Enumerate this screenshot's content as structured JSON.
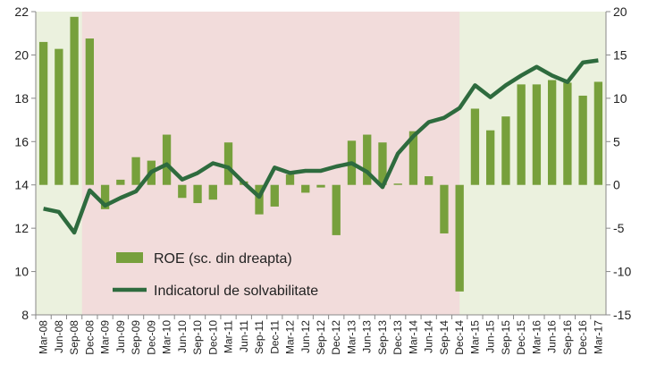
{
  "chart_data": {
    "type": "bar_line",
    "categories": [
      "Mar-08",
      "Jun-08",
      "Sep-08",
      "Dec-08",
      "Mar-09",
      "Jun-09",
      "Sep-09",
      "Dec-09",
      "Mar-10",
      "Jun-10",
      "Sep-10",
      "Dec-10",
      "Mar-11",
      "Jun-11",
      "Sep-11",
      "Dec-11",
      "Mar-12",
      "Jun-12",
      "Sep-12",
      "Dec-12",
      "Mar-13",
      "Jun-13",
      "Sep-13",
      "Dec-13",
      "Mar-14",
      "Jun-14",
      "Sep-14",
      "Dec-14",
      "Mar-15",
      "Jun-15",
      "Sep-15",
      "Dec-15",
      "Mar-16",
      "Jun-16",
      "Sep-16",
      "Dec-16",
      "Mar-17"
    ],
    "series": [
      {
        "name": "ROE (sc. din dreapta)",
        "type": "bar",
        "axis": "y2",
        "color": "#77a03c",
        "values": [
          16.5,
          15.7,
          19.4,
          16.9,
          -2.8,
          0.6,
          3.2,
          2.8,
          5.8,
          -1.5,
          -2.1,
          -1.7,
          4.9,
          0.4,
          -3.4,
          -2.5,
          1.2,
          -0.9,
          -0.3,
          -5.8,
          5.1,
          5.8,
          4.9,
          0.15,
          6.2,
          1.0,
          -5.6,
          -12.3,
          8.8,
          6.3,
          7.9,
          11.6,
          11.6,
          12.1,
          11.8,
          10.3,
          11.9
        ]
      },
      {
        "name": "Indicatorul de solvabilitate",
        "type": "line",
        "axis": "y",
        "color": "#2e6b3e",
        "values": [
          12.9,
          12.75,
          11.8,
          13.75,
          13.05,
          13.4,
          13.7,
          14.6,
          14.95,
          14.25,
          14.55,
          15.0,
          14.8,
          14.1,
          13.45,
          14.8,
          14.55,
          14.65,
          14.65,
          14.85,
          15.0,
          14.6,
          13.9,
          15.45,
          16.25,
          16.9,
          17.1,
          17.55,
          18.6,
          18.05,
          18.6,
          19.05,
          19.45,
          19.05,
          18.75,
          19.65,
          19.75
        ]
      }
    ],
    "ylim": [
      8,
      22
    ],
    "yticks": [
      8,
      10,
      12,
      14,
      16,
      18,
      20,
      22
    ],
    "y2lim": [
      -15,
      20
    ],
    "y2ticks": [
      -15,
      -10,
      -5,
      0,
      5,
      10,
      15,
      20
    ],
    "background_color": "#ebf1de",
    "shaded_region": {
      "from": "Dec-08",
      "to": "Dec-14",
      "color": "#f2dcdb"
    },
    "legend": "lower-left"
  }
}
